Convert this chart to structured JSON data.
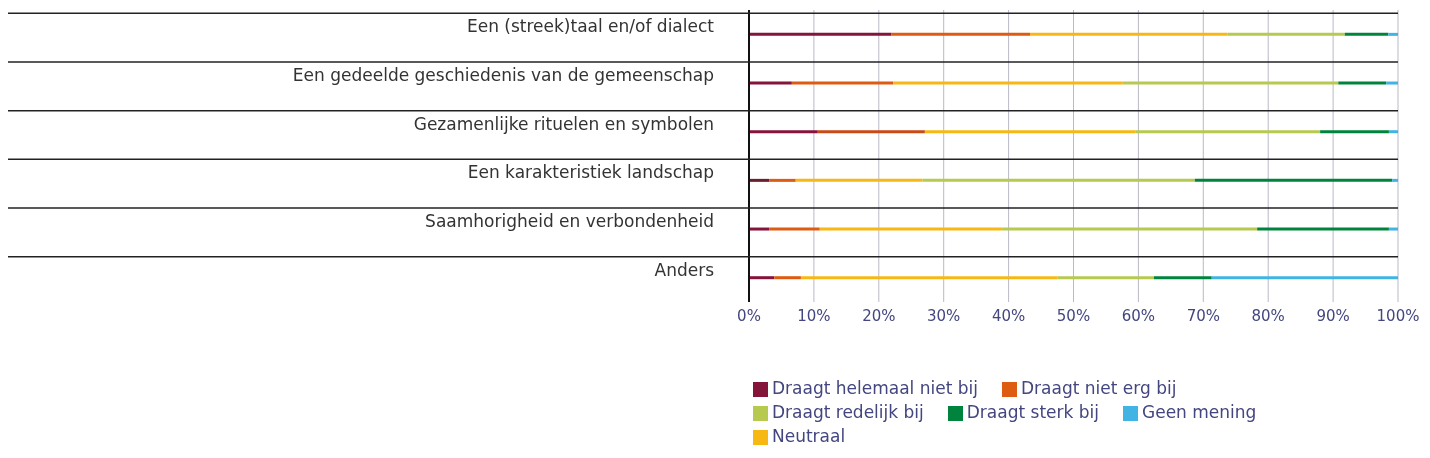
{
  "chart_data": {
    "type": "bar",
    "orientation": "horizontal",
    "stacked": true,
    "categories": [
      "Een (streek)taal en/of dialect",
      "Een gedeelde geschiedenis van de gemeenschap",
      "Gezamenlijke rituelen en symbolen",
      "Een karakteristiek landschap",
      "Saamhorigheid en verbondenheid",
      "Anders"
    ],
    "series": [
      {
        "name": "Draagt helemaal niet bij",
        "color": "#85143a",
        "colors": [
          "#85143a",
          "#85143a",
          "#85143a",
          "#6b1f2a",
          "#85143a",
          "#85143a"
        ],
        "values": [
          21.9,
          6.6,
          10.6,
          3.1,
          3.1,
          3.9
        ]
      },
      {
        "name": "Draagt niet erg bij",
        "color": "#de5b12",
        "colors": [
          "#de5b12",
          "#de5b12",
          "#c84a17",
          "#de5b12",
          "#de5b12",
          "#de5b12"
        ],
        "values": [
          21.4,
          15.6,
          16.5,
          4.1,
          7.8,
          4.1
        ]
      },
      {
        "name": "Neutraal",
        "color": "#f8b814",
        "values": [
          30.4,
          35.4,
          32.5,
          19.5,
          28.1,
          39.5
        ]
      },
      {
        "name": "Draagt redelijk bij",
        "color": "#b8c94f",
        "values": [
          18.1,
          33.2,
          28.4,
          42.0,
          39.3,
          14.9
        ]
      },
      {
        "name": "Draagt sterk bij",
        "color": "#00843d",
        "values": [
          6.7,
          7.4,
          10.6,
          30.4,
          20.3,
          8.9
        ]
      },
      {
        "name": "Geen mening",
        "color": "#42b4e4",
        "values": [
          1.5,
          1.8,
          1.4,
          0.9,
          1.4,
          28.7
        ]
      }
    ],
    "xlim": [
      0,
      100
    ],
    "xticks": [
      {
        "value": 0,
        "label": "0%"
      },
      {
        "value": 10,
        "label": "10%"
      },
      {
        "value": 20,
        "label": "20%"
      },
      {
        "value": 30,
        "label": "30%"
      },
      {
        "value": 40,
        "label": "40%"
      },
      {
        "value": 50,
        "label": "50%"
      },
      {
        "value": 60,
        "label": "60%"
      },
      {
        "value": 70,
        "label": "70%"
      },
      {
        "value": 80,
        "label": "80%"
      },
      {
        "value": 90,
        "label": "90%"
      },
      {
        "value": 100,
        "label": "100%"
      }
    ],
    "grid": "x",
    "legend": "bottom"
  }
}
